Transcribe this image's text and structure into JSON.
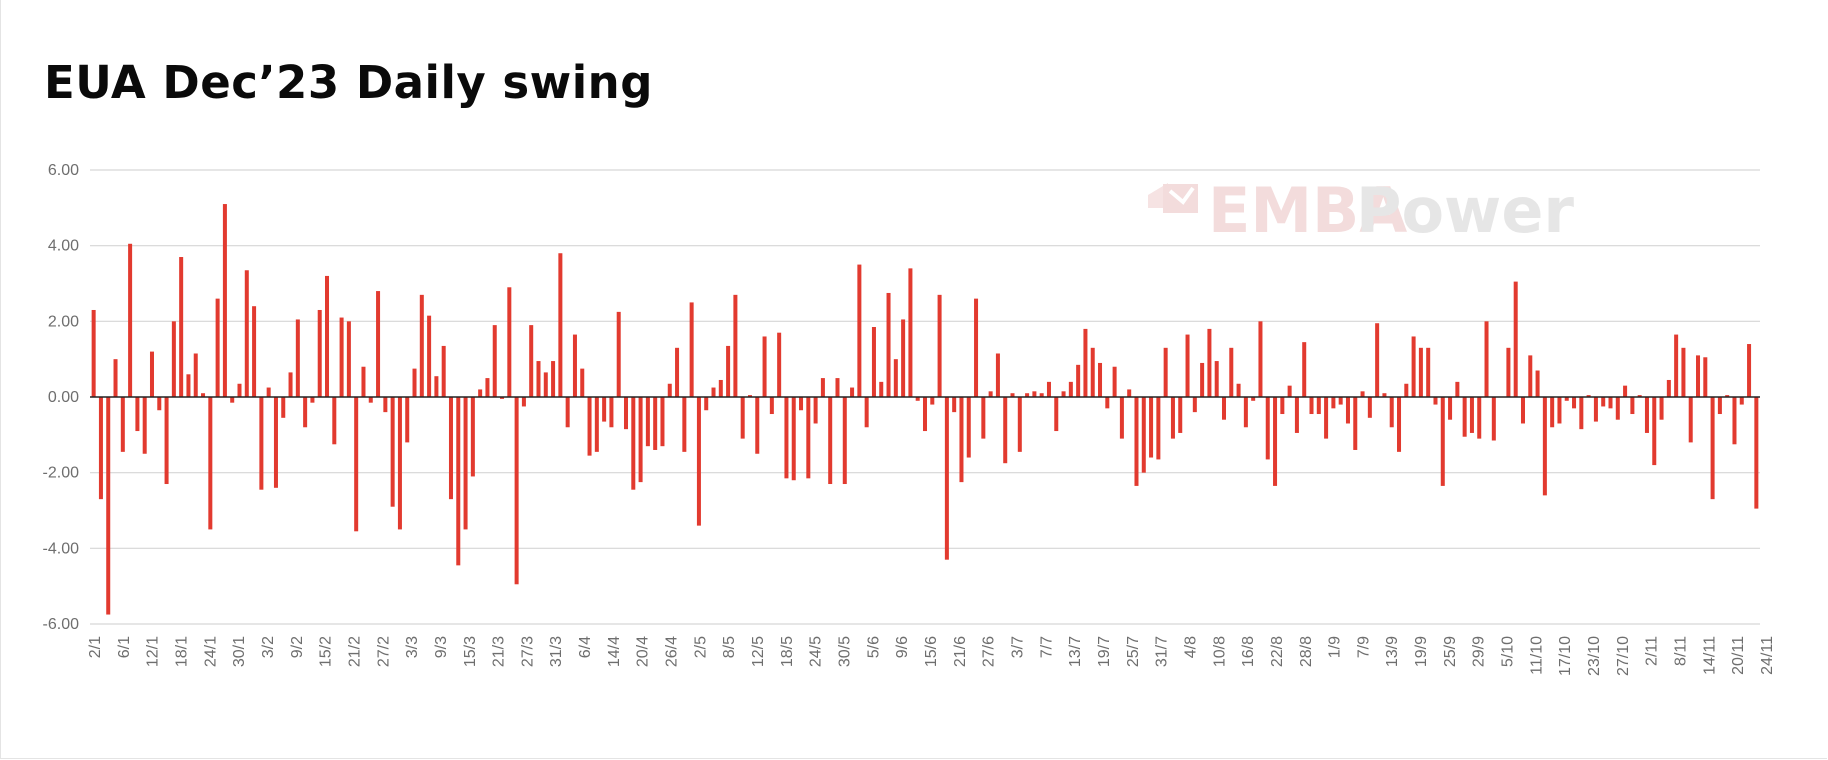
{
  "title": "EUA Dec’23 Daily swing",
  "watermark": {
    "part1": "EMBA",
    "part2": "Power",
    "color1": "#f3dcdc",
    "color2": "#e6e6e6",
    "icon": "emba-power-logo-icon"
  },
  "colors": {
    "bar": "#e23a2f",
    "grid": "#d6d6d6",
    "zero_line": "#222222",
    "tick": "#6e6e6e"
  },
  "chart_data": {
    "type": "bar",
    "title": "EUA Dec’23 Daily swing",
    "xlabel": "",
    "ylabel": "",
    "ylim": [
      -6,
      6
    ],
    "yticks": [
      "6.00",
      "4.00",
      "2.00",
      "0.00",
      "-2.00",
      "-4.00",
      "-6.00"
    ],
    "grid": true,
    "legend": "none",
    "xtick_labels": [
      "2/1",
      "6/1",
      "12/1",
      "18/1",
      "24/1",
      "30/1",
      "3/2",
      "9/2",
      "15/2",
      "21/2",
      "27/2",
      "3/3",
      "9/3",
      "15/3",
      "21/3",
      "27/3",
      "31/3",
      "6/4",
      "14/4",
      "20/4",
      "26/4",
      "2/5",
      "8/5",
      "12/5",
      "18/5",
      "24/5",
      "30/5",
      "5/6",
      "9/6",
      "15/6",
      "21/6",
      "27/6",
      "3/7",
      "7/7",
      "13/7",
      "19/7",
      "25/7",
      "31/7",
      "4/8",
      "10/8",
      "16/8",
      "22/8",
      "28/8",
      "1/9",
      "7/9",
      "13/9",
      "19/9",
      "25/9",
      "29/9",
      "5/10",
      "11/10",
      "17/10",
      "23/10",
      "27/10",
      "2/11",
      "8/11",
      "14/11",
      "20/11",
      "24/11"
    ],
    "values": [
      2.3,
      -2.7,
      -5.75,
      1.0,
      -1.45,
      4.05,
      -0.9,
      -1.5,
      1.2,
      -0.35,
      -2.3,
      2.0,
      3.7,
      0.6,
      1.15,
      0.1,
      -3.5,
      2.6,
      5.1,
      -0.15,
      0.35,
      3.35,
      2.4,
      -2.45,
      0.25,
      -2.4,
      -0.55,
      0.65,
      2.05,
      -0.8,
      -0.15,
      2.3,
      3.2,
      -1.25,
      2.1,
      2.0,
      -3.55,
      0.8,
      -0.15,
      2.8,
      -0.4,
      -2.9,
      -3.5,
      -1.2,
      0.75,
      2.7,
      2.15,
      0.55,
      1.35,
      -2.7,
      -4.45,
      -3.5,
      -2.1,
      0.2,
      0.5,
      1.9,
      -0.05,
      2.9,
      -4.95,
      -0.25,
      1.9,
      0.95,
      0.65,
      0.95,
      3.8,
      -0.8,
      1.65,
      0.75,
      -1.55,
      -1.45,
      -0.65,
      -0.8,
      2.25,
      -0.85,
      -2.45,
      -2.25,
      -1.3,
      -1.4,
      -1.3,
      0.35,
      1.3,
      -1.45,
      2.5,
      -3.4,
      -0.35,
      0.25,
      0.45,
      1.35,
      2.7,
      -1.1,
      0.05,
      -1.5,
      1.6,
      -0.45,
      1.7,
      -2.15,
      -2.2,
      -0.35,
      -2.15,
      -0.7,
      0.5,
      -2.3,
      0.5,
      -2.3,
      0.25,
      3.5,
      -0.8,
      1.85,
      0.4,
      2.75,
      1.0,
      2.05,
      3.4,
      -0.1,
      -0.9,
      -0.2,
      2.7,
      -4.3,
      -0.4,
      -2.25,
      -1.6,
      2.6,
      -1.1,
      0.15,
      1.15,
      -1.75,
      0.1,
      -1.45,
      0.1,
      0.15,
      0.1,
      0.4,
      -0.9,
      0.15,
      0.4,
      0.85,
      1.8,
      1.3,
      0.9,
      -0.3,
      0.8,
      -1.1,
      0.2,
      -2.35,
      -2.0,
      -1.6,
      -1.65,
      1.3,
      -1.1,
      -0.95,
      1.65,
      -0.4,
      0.9,
      1.8,
      0.95,
      -0.6,
      1.3,
      0.35,
      -0.8,
      -0.1,
      2.0,
      -1.65,
      -2.35,
      -0.45,
      0.3,
      -0.95,
      1.45,
      -0.45,
      -0.45,
      -1.1,
      -0.3,
      -0.2,
      -0.7,
      -1.4,
      0.15,
      -0.55,
      1.95,
      0.1,
      -0.8,
      -1.45,
      0.35,
      1.6,
      1.3,
      1.3,
      -0.2,
      -2.35,
      -0.6,
      0.4,
      -1.05,
      -0.95,
      -1.1,
      2.0,
      -1.15,
      0.0,
      1.3,
      3.05,
      -0.7,
      1.1,
      0.7,
      -2.6,
      -0.8,
      -0.7,
      -0.1,
      -0.3,
      -0.85,
      0.05,
      -0.65,
      -0.25,
      -0.3,
      -0.6,
      0.3,
      -0.45,
      0.05,
      -0.95,
      -1.8,
      -0.6,
      0.45,
      1.65,
      1.3,
      -1.2,
      1.1,
      1.05,
      -2.7,
      -0.45,
      0.05,
      -1.25,
      -0.2,
      1.4,
      -2.95
    ]
  }
}
